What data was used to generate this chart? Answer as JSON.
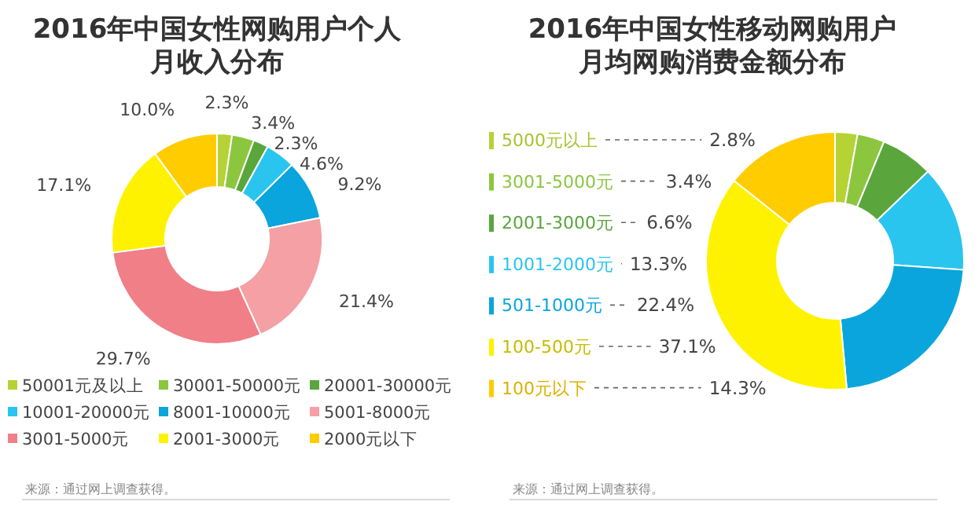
{
  "chart_data": [
    {
      "type": "donut",
      "title": "2016年中国女性网购用户个人月收入分布",
      "categories": [
        "50001元及以上",
        "30001-50000元",
        "20001-30000元",
        "10001-20000元",
        "8001-10000元",
        "5001-8000元",
        "3001-5000元",
        "2001-3000元",
        "2000元以下"
      ],
      "values": [
        2.3,
        3.4,
        2.3,
        4.6,
        9.2,
        21.4,
        29.7,
        17.1,
        10.0
      ],
      "value_labels": [
        "2.3%",
        "3.4%",
        "2.3%",
        "4.6%",
        "9.2%",
        "21.4%",
        "29.7%",
        "17.1%",
        "10.0%"
      ],
      "colors": [
        "#b5d334",
        "#8cc63f",
        "#5aa63c",
        "#29c5ef",
        "#0aa5dc",
        "#f4a0a4",
        "#f07f88",
        "#fff200",
        "#ffcc00"
      ],
      "legend": "bottom",
      "annotations": [
        "来源：通过网上调查获得。"
      ]
    },
    {
      "type": "donut",
      "title": "2016年中国女性移动网购用户月均网购消费金额分布",
      "categories": [
        "5000元以上",
        "3001-5000元",
        "2001-3000元",
        "1001-2000元",
        "501-1000元",
        "100-500元",
        "100元以下"
      ],
      "values": [
        2.8,
        3.4,
        6.6,
        13.3,
        22.4,
        37.1,
        14.3
      ],
      "value_labels": [
        "2.8%",
        "3.4%",
        "6.6%",
        "13.3%",
        "22.4%",
        "37.1%",
        "14.3%"
      ],
      "colors": [
        "#b5d334",
        "#8cc63f",
        "#5aa63c",
        "#29c5ef",
        "#0aa5dc",
        "#fff200",
        "#ffcc00"
      ],
      "legend": "left",
      "annotations": [
        "来源：通过网上调查获得。"
      ]
    }
  ]
}
